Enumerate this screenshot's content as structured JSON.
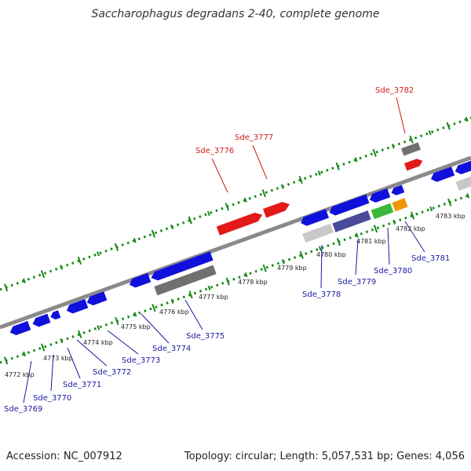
{
  "title": "Saccharophagus degradans 2-40, complete genome",
  "footer": {
    "accession": "Accession: NC_007912",
    "summary": "Topology: circular; Length: 5,057,531 bp; Genes: 4,056"
  },
  "colors": {
    "forward_gene": "#e21a1a",
    "reverse_gene": "#1010dd",
    "gray_feature": "#707070",
    "light_gray_feature": "#c8c8c8",
    "purple_feature": "#4a4a9a",
    "green_feature": "#3bb83b",
    "orange_feature": "#f0960a",
    "backbone": "#8a8a8a",
    "tick": "#188a18",
    "label_blue": "#1a1aa0",
    "label_red": "#d01a1a"
  },
  "scale_labels": [
    "4772 kbp",
    "4773 kbp",
    "4774 kbp",
    "4775 kbp",
    "4776 kbp",
    "4777 kbp",
    "4778 kbp",
    "4779 kbp",
    "4780 kbp",
    "4781 kbp",
    "4782 kbp",
    "4783 kbp"
  ],
  "gene_labels": [
    "Sde_3769",
    "Sde_3770",
    "Sde_3771",
    "Sde_3772",
    "Sde_3773",
    "Sde_3774",
    "Sde_3775",
    "Sde_3776",
    "Sde_3777",
    "Sde_3778",
    "Sde_3779",
    "Sde_3780",
    "Sde_3781",
    "Sde_3782"
  ]
}
